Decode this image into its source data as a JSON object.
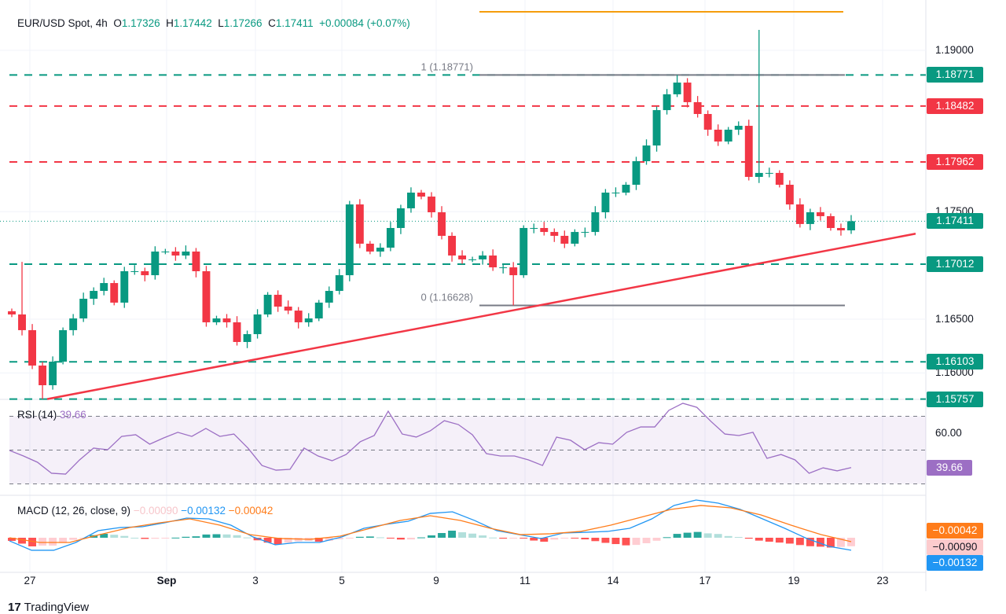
{
  "header": {
    "symbol": "EUR/USD Spot, 4h",
    "o_label": "O",
    "o": "1.17326",
    "h_label": "H",
    "h": "1.17442",
    "l_label": "L",
    "l": "1.17266",
    "c_label": "C",
    "c": "1.17411",
    "change": "+0.00084 (+0.07%)"
  },
  "rsi": {
    "label": "RSI (14)",
    "value": "39.66",
    "axis_label": "60.00",
    "last_label": "39.66"
  },
  "macd": {
    "label": "MACD (12, 26, close, 9)",
    "hist": "−0.00090",
    "macd": "−0.00132",
    "signal": "−0.00042",
    "labels": [
      "−0.00042",
      "−0.00090",
      "−0.00132"
    ]
  },
  "footer": {
    "logo_text": "TradingView"
  },
  "colors": {
    "up": "#089981",
    "down": "#f23645",
    "rsi": "#9c6fc4",
    "macd": "#2196f3",
    "signal": "#ff7c1a",
    "fib": "#787b86",
    "trend": "#f23645",
    "top_line": "#f59d0c"
  },
  "chart_data": [
    {
      "type": "candlestick",
      "title": "EUR/USD Spot, 4h",
      "y_ticks": [
        "1.19000",
        "1.17500",
        "1.16500",
        "1.16000"
      ],
      "ylim": [
        1.1575,
        1.1925
      ],
      "x_ticks": [
        "27",
        "Sep",
        "3",
        "5",
        "9",
        "11",
        "14",
        "17",
        "19",
        "23"
      ],
      "closes": [
        1.16544,
        1.16398,
        1.16069,
        1.15886,
        1.16105,
        1.16398,
        1.16507,
        1.1669,
        1.16763,
        1.16836,
        1.16654,
        1.16946,
        1.16946,
        1.16909,
        1.17129,
        1.17129,
        1.17092,
        1.17129,
        1.16946,
        1.16471,
        1.16507,
        1.16471,
        1.16288,
        1.16361,
        1.16544,
        1.16727,
        1.16617,
        1.1658,
        1.16471,
        1.16507,
        1.16654,
        1.16763,
        1.16909,
        1.17567,
        1.17202,
        1.17129,
        1.17165,
        1.17348,
        1.17531,
        1.17677,
        1.1764,
        1.17494,
        1.17275,
        1.17092,
        1.17056,
        1.17056,
        1.17092,
        1.16982,
        1.16982,
        1.16909,
        1.17348,
        1.17348,
        1.17311,
        1.17275,
        1.17202,
        1.17311,
        1.17311,
        1.17494,
        1.17677,
        1.17677,
        1.1775,
        1.17969,
        1.18115,
        1.18444,
        1.18591,
        1.187,
        1.18518,
        1.18408,
        1.18262,
        1.18152,
        1.18262,
        1.18298,
        1.17823,
        1.1786,
        1.1786,
        1.1775,
        1.17567,
        1.17385,
        1.17494,
        1.17458,
        1.17348,
        1.17326,
        1.17411
      ],
      "wick_highs": {
        "1": 1.17033,
        "73": 1.1919,
        "65": 1.18771
      },
      "wick_lows": {
        "3": 1.15757,
        "49": 1.16628
      },
      "levels": [
        {
          "value": "1.18771",
          "color": "#089981"
        },
        {
          "value": "1.18482",
          "color": "#f23645"
        },
        {
          "value": "1.17962",
          "color": "#f23645"
        },
        {
          "value": "1.17012",
          "color": "#089981"
        },
        {
          "value": "1.16103",
          "color": "#089981"
        },
        {
          "value": "1.15757",
          "color": "#089981"
        }
      ],
      "current": {
        "value": "1.17411"
      },
      "fib": [
        {
          "label": "1 (1.18771)",
          "value": 1.18771
        },
        {
          "label": "0 (1.16628)",
          "value": 1.16628
        }
      ],
      "trendline": {
        "from": 1.15757,
        "to": 1.17295
      }
    },
    {
      "type": "line",
      "name": "RSI (14)",
      "ylim": [
        25,
        80
      ],
      "bands": [
        70,
        50,
        30
      ],
      "values": [
        49.8,
        46.5,
        42.8,
        36.3,
        35.8,
        44.2,
        51.2,
        50.2,
        58.1,
        59.1,
        53.5,
        57.2,
        60.5,
        58.1,
        62.8,
        58.1,
        59.5,
        51.2,
        40.9,
        38.1,
        38.6,
        51.2,
        46.5,
        43.7,
        47.4,
        54.9,
        58.6,
        73.0,
        59.5,
        57.7,
        61.4,
        67.4,
        65.1,
        59.1,
        47.9,
        46.5,
        46.5,
        44.2,
        40.9,
        57.7,
        55.8,
        50.2,
        54.4,
        53.5,
        60.5,
        63.7,
        63.7,
        73.5,
        77.7,
        75.3,
        67.0,
        59.5,
        58.6,
        60.5,
        45.1,
        47.4,
        44.2,
        36.3,
        39.5,
        37.7,
        39.66
      ]
    },
    {
      "type": "line",
      "name": "MACD (12, 26, close, 9)",
      "macd": [
        -0.00033,
        -0.00133,
        -0.00133,
        -0.0005,
        0.00075,
        0.00108,
        0.00117,
        0.00158,
        0.00208,
        0.002,
        0.00133,
        8e-05,
        -0.00075,
        -0.0005,
        -0.0005,
        8e-05,
        0.001,
        0.00142,
        0.00175,
        0.00258,
        0.00275,
        0.00183,
        0.00075,
        0.00033,
        -8e-05,
        0.0005,
        0.00058,
        0.00067,
        0.001,
        0.002,
        0.00342,
        0.004,
        0.00367,
        0.003,
        0.002,
        0.001,
        -8e-05,
        -0.00092,
        -0.00132
      ],
      "signal": [
        0,
        -0.0005,
        -0.0005,
        0.00033,
        0.00108,
        0.00158,
        0.002,
        0.00133,
        0.00033,
        -8e-05,
        -0.00017,
        0.00017,
        0.001,
        0.00183,
        0.00233,
        0.00183,
        0.001,
        0.00033,
        0.00042,
        0.00067,
        0.00133,
        0.00217,
        0.003,
        0.00342,
        0.00317,
        0.00242,
        0.00133,
        0.00033,
        -0.00042
      ]
    }
  ]
}
